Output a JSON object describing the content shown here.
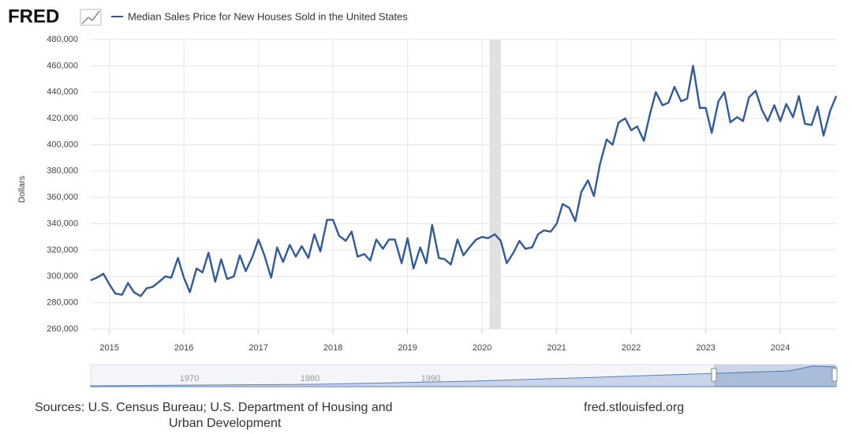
{
  "logo": "FRED",
  "chart_data": {
    "type": "line",
    "series": [
      {
        "name": "Median Sales Price for New Houses Sold in the United States",
        "color": "#2f5a9c",
        "values": [
          297000,
          299000,
          302000,
          294000,
          287000,
          286000,
          295000,
          288000,
          285000,
          291000,
          292000,
          296000,
          300000,
          299000,
          314000,
          299000,
          288000,
          306000,
          303000,
          318000,
          296000,
          313000,
          298000,
          300000,
          316000,
          304000,
          315000,
          328000,
          316000,
          299000,
          322000,
          311000,
          324000,
          315000,
          323000,
          314000,
          332000,
          319000,
          343000,
          343000,
          331000,
          327000,
          334000,
          315000,
          317000,
          312000,
          328000,
          321000,
          328000,
          328000,
          310000,
          329000,
          306000,
          322000,
          310000,
          339000,
          314000,
          313000,
          309000,
          328000,
          316000,
          322000,
          328000,
          330000,
          329000,
          332000,
          327000,
          310000,
          318000,
          327000,
          321000,
          322000,
          332000,
          335000,
          334000,
          340000,
          355000,
          352000,
          342000,
          364000,
          373000,
          361000,
          385000,
          404000,
          400000,
          417000,
          420000,
          411000,
          414000,
          403000,
          423000,
          440000,
          430000,
          432000,
          444000,
          433000,
          435000,
          460000,
          428000,
          428000,
          409000,
          433000,
          440000,
          417000,
          421000,
          418000,
          436000,
          441000,
          427000,
          418000,
          430000,
          418000,
          431000,
          421000,
          437000,
          416000,
          415000,
          429000,
          407000,
          426000,
          437000
        ]
      }
    ],
    "x": [
      2014.75,
      2014.83,
      2014.92,
      2015.0,
      2015.08,
      2015.17,
      2015.25,
      2015.33,
      2015.42,
      2015.5,
      2015.58,
      2015.67,
      2015.75,
      2015.83,
      2015.92,
      2016.0,
      2016.08,
      2016.17,
      2016.25,
      2016.33,
      2016.42,
      2016.5,
      2016.58,
      2016.67,
      2016.75,
      2016.83,
      2016.92,
      2017.0,
      2017.08,
      2017.17,
      2017.25,
      2017.33,
      2017.42,
      2017.5,
      2017.58,
      2017.67,
      2017.75,
      2017.83,
      2017.92,
      2018.0,
      2018.08,
      2018.17,
      2018.25,
      2018.33,
      2018.42,
      2018.5,
      2018.58,
      2018.67,
      2018.75,
      2018.83,
      2018.92,
      2019.0,
      2019.08,
      2019.17,
      2019.25,
      2019.33,
      2019.42,
      2019.5,
      2019.58,
      2019.67,
      2019.75,
      2019.83,
      2019.92,
      2020.0,
      2020.08,
      2020.17,
      2020.25,
      2020.33,
      2020.42,
      2020.5,
      2020.58,
      2020.67,
      2020.75,
      2020.83,
      2020.92,
      2021.0,
      2021.08,
      2021.17,
      2021.25,
      2021.33,
      2021.42,
      2021.5,
      2021.58,
      2021.67,
      2021.75,
      2021.83,
      2021.92,
      2022.0,
      2022.08,
      2022.17,
      2022.25,
      2022.33,
      2022.42,
      2022.5,
      2022.58,
      2022.67,
      2022.75,
      2022.83,
      2022.92,
      2023.0,
      2023.08,
      2023.17,
      2023.25,
      2023.33,
      2023.42,
      2023.5,
      2023.58,
      2023.67,
      2023.75,
      2023.83,
      2023.92,
      2024.0,
      2024.08,
      2024.17,
      2024.25,
      2024.33,
      2024.42,
      2024.5,
      2024.58,
      2024.67,
      2024.75
    ],
    "xlim": [
      2014.75,
      2024.75
    ],
    "xticks": [
      2015,
      2016,
      2017,
      2018,
      2019,
      2020,
      2021,
      2022,
      2023,
      2024
    ],
    "ylabel": "Dollars",
    "ylim": [
      260000,
      480000
    ],
    "yticks": [
      {
        "value": 260000,
        "label": "260,000"
      },
      {
        "value": 280000,
        "label": "280,000"
      },
      {
        "value": 300000,
        "label": "300,000"
      },
      {
        "value": 320000,
        "label": "320,000"
      },
      {
        "value": 340000,
        "label": "340,000"
      },
      {
        "value": 360000,
        "label": "360,000"
      },
      {
        "value": 380000,
        "label": "380,000"
      },
      {
        "value": 400000,
        "label": "400,000"
      },
      {
        "value": 420000,
        "label": "420,000"
      },
      {
        "value": 440000,
        "label": "440,000"
      },
      {
        "value": 460000,
        "label": "460,000"
      },
      {
        "value": 480000,
        "label": "480,000"
      }
    ],
    "shaded_ranges": [
      [
        2020.1,
        2020.25
      ]
    ],
    "grid": true,
    "navigator_labels": [
      "1970",
      "1980",
      "1990"
    ]
  },
  "sources": [
    "Sources: U.S. Census Bureau; U.S. Department of Housing and",
    "Urban Development"
  ],
  "site": "fred.stlouisfed.org"
}
